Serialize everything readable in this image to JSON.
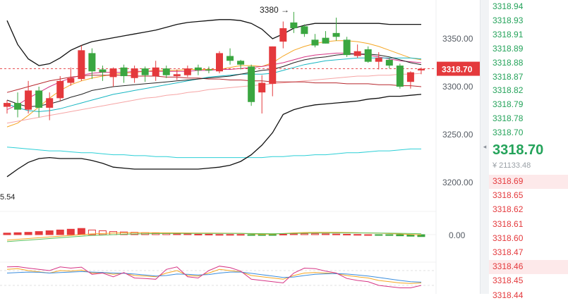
{
  "chart": {
    "price_labels": [
      "3350.00",
      "3300.00",
      "3250.00",
      "3200.00"
    ],
    "last_price_tag": "3318.70",
    "high_annotation": "3380 →",
    "low_annotation": "5.54",
    "macd_zero_label": "0.00",
    "colors": {
      "up": "#e4393c",
      "down": "#3aa640",
      "tag": "#e4393c"
    }
  },
  "toggle": {
    "icon": "chevron-left-icon",
    "glyph": "◂"
  },
  "order_book": {
    "asks": [
      "3318.94",
      "3318.93",
      "3318.91",
      "3318.89",
      "3318.88",
      "3318.87",
      "3318.82",
      "3318.79",
      "3318.78",
      "3318.70"
    ],
    "last_price": "3318.70",
    "turnover": "¥ 21133.48",
    "bids": [
      "3318.69",
      "3318.65",
      "3318.62",
      "3318.61",
      "3318.60",
      "3318.47",
      "3318.46",
      "3318.45",
      "3318.44"
    ]
  },
  "chart_data": {
    "type": "candlestick",
    "price_axis": {
      "ticks": [
        3350,
        3300,
        3250,
        3200
      ],
      "ylim": [
        3180,
        3395
      ]
    },
    "last_price": 3318.7,
    "high_marker": 3380,
    "candles": [
      {
        "o": 3279,
        "h": 3286,
        "l": 3272,
        "c": 3283
      },
      {
        "o": 3283,
        "h": 3294,
        "l": 3268,
        "c": 3276
      },
      {
        "o": 3276,
        "h": 3306,
        "l": 3272,
        "c": 3296
      },
      {
        "o": 3296,
        "h": 3300,
        "l": 3268,
        "c": 3278
      },
      {
        "o": 3278,
        "h": 3294,
        "l": 3265,
        "c": 3288
      },
      {
        "o": 3288,
        "h": 3311,
        "l": 3285,
        "c": 3306
      },
      {
        "o": 3304,
        "h": 3320,
        "l": 3301,
        "c": 3309
      },
      {
        "o": 3308,
        "h": 3343,
        "l": 3306,
        "c": 3338
      },
      {
        "o": 3335,
        "h": 3340,
        "l": 3308,
        "c": 3316
      },
      {
        "o": 3318,
        "h": 3322,
        "l": 3306,
        "c": 3315
      },
      {
        "o": 3310,
        "h": 3320,
        "l": 3300,
        "c": 3319
      },
      {
        "o": 3320,
        "h": 3323,
        "l": 3304,
        "c": 3311
      },
      {
        "o": 3309,
        "h": 3322,
        "l": 3304,
        "c": 3319
      },
      {
        "o": 3319,
        "h": 3321,
        "l": 3305,
        "c": 3312
      },
      {
        "o": 3311,
        "h": 3327,
        "l": 3306,
        "c": 3320
      },
      {
        "o": 3319,
        "h": 3322,
        "l": 3309,
        "c": 3312
      },
      {
        "o": 3311,
        "h": 3318,
        "l": 3307,
        "c": 3313
      },
      {
        "o": 3312,
        "h": 3322,
        "l": 3310,
        "c": 3319
      },
      {
        "o": 3320,
        "h": 3323,
        "l": 3312,
        "c": 3317
      },
      {
        "o": 3318,
        "h": 3321,
        "l": 3314,
        "c": 3317
      },
      {
        "o": 3316,
        "h": 3337,
        "l": 3314,
        "c": 3335
      },
      {
        "o": 3332,
        "h": 3340,
        "l": 3323,
        "c": 3327
      },
      {
        "o": 3327,
        "h": 3328,
        "l": 3318,
        "c": 3323
      },
      {
        "o": 3321,
        "h": 3323,
        "l": 3280,
        "c": 3284
      },
      {
        "o": 3294,
        "h": 3312,
        "l": 3272,
        "c": 3304
      },
      {
        "o": 3303,
        "h": 3342,
        "l": 3290,
        "c": 3342
      },
      {
        "o": 3347,
        "h": 3368,
        "l": 3340,
        "c": 3361
      },
      {
        "o": 3367,
        "h": 3378,
        "l": 3356,
        "c": 3361
      },
      {
        "o": 3363,
        "h": 3365,
        "l": 3352,
        "c": 3355
      },
      {
        "o": 3349,
        "h": 3355,
        "l": 3341,
        "c": 3343
      },
      {
        "o": 3351,
        "h": 3358,
        "l": 3345,
        "c": 3345
      },
      {
        "o": 3356,
        "h": 3372,
        "l": 3348,
        "c": 3352
      },
      {
        "o": 3349,
        "h": 3352,
        "l": 3331,
        "c": 3333
      },
      {
        "o": 3332,
        "h": 3344,
        "l": 3330,
        "c": 3337
      },
      {
        "o": 3339,
        "h": 3342,
        "l": 3325,
        "c": 3326
      },
      {
        "o": 3326,
        "h": 3336,
        "l": 3318,
        "c": 3330
      },
      {
        "o": 3328,
        "h": 3330,
        "l": 3319,
        "c": 3322
      },
      {
        "o": 3322,
        "h": 3324,
        "l": 3298,
        "c": 3300
      },
      {
        "o": 3305,
        "h": 3316,
        "l": 3298,
        "c": 3315
      },
      {
        "o": 3317,
        "h": 3320,
        "l": 3313,
        "c": 3318.7
      }
    ],
    "bollinger": {
      "upper": [
        3369,
        3344,
        3329,
        3322,
        3324,
        3330,
        3338,
        3343,
        3347,
        3349,
        3351,
        3353,
        3355,
        3357,
        3359,
        3362,
        3365,
        3367,
        3368,
        3369,
        3370,
        3370,
        3369,
        3366,
        3360,
        3350,
        3355,
        3361,
        3364,
        3366,
        3366,
        3366,
        3366,
        3366,
        3366,
        3366,
        3365,
        3365,
        3365,
        3365
      ],
      "middle": [
        3286,
        3282,
        3279,
        3280,
        3282,
        3285,
        3289,
        3292,
        3296,
        3298,
        3300,
        3301,
        3302,
        3303,
        3304,
        3305,
        3306,
        3307,
        3308,
        3309,
        3310,
        3311,
        3313,
        3315,
        3317,
        3318,
        3321,
        3325,
        3328,
        3330,
        3331,
        3333,
        3334,
        3334,
        3334,
        3333,
        3331,
        3328,
        3325,
        3323
      ],
      "lower": [
        3206,
        3214,
        3221,
        3225,
        3226,
        3225,
        3225,
        3225,
        3223,
        3220,
        3216,
        3215,
        3214,
        3214,
        3214,
        3214,
        3214,
        3214,
        3214,
        3215,
        3216,
        3218,
        3222,
        3229,
        3239,
        3252,
        3271,
        3276,
        3279,
        3281,
        3282,
        3283,
        3284,
        3285,
        3287,
        3288,
        3290,
        3290,
        3291,
        3292
      ]
    },
    "moving_averages": [
      {
        "color": "#f5a623",
        "values": [
          3258,
          3262,
          3270,
          3279,
          3288,
          3296,
          3302,
          3306,
          3309,
          3311,
          3313,
          3314,
          3315,
          3316,
          3317,
          3317,
          3317,
          3318,
          3318,
          3318,
          3318,
          3320,
          3322,
          3322,
          3321,
          3325,
          3332,
          3338,
          3342,
          3345,
          3347,
          3348,
          3348,
          3347,
          3345,
          3342,
          3338,
          3334,
          3330,
          3328
        ]
      },
      {
        "color": "#d63384",
        "values": [
          3276,
          3281,
          3288,
          3294,
          3300,
          3305,
          3309,
          3312,
          3314,
          3315,
          3315,
          3315,
          3316,
          3316,
          3316,
          3316,
          3316,
          3316,
          3317,
          3317,
          3318,
          3318,
          3319,
          3320,
          3321,
          3323,
          3325,
          3328,
          3331,
          3333,
          3334,
          3335,
          3335,
          3334,
          3333,
          3331,
          3329,
          3327,
          3326,
          3325
        ]
      },
      {
        "color": "#17b6c2",
        "values": [
          3282,
          3278,
          3275,
          3274,
          3275,
          3277,
          3280,
          3283,
          3286,
          3289,
          3292,
          3294,
          3296,
          3298,
          3300,
          3302,
          3304,
          3306,
          3308,
          3310,
          3311,
          3312,
          3313,
          3313,
          3313,
          3314,
          3317,
          3320,
          3323,
          3325,
          3327,
          3328,
          3329,
          3330,
          3330,
          3330,
          3330,
          3330,
          3330,
          3329
        ]
      },
      {
        "color": "#f6a5a5",
        "values": [
          3262,
          3264,
          3266,
          3268,
          3270,
          3272,
          3274,
          3276,
          3278,
          3280,
          3282,
          3284,
          3286,
          3288,
          3289,
          3291,
          3292,
          3294,
          3295,
          3297,
          3298,
          3299,
          3300,
          3301,
          3302,
          3303,
          3304,
          3305,
          3306,
          3307,
          3308,
          3309,
          3310,
          3311,
          3311,
          3312,
          3312,
          3313,
          3313,
          3314
        ]
      },
      {
        "color": "#b7282e",
        "values": [
          3294,
          3297,
          3300,
          3303,
          3306,
          3308,
          3310,
          3311,
          3312,
          3312,
          3312,
          3312,
          3311,
          3311,
          3311,
          3310,
          3310,
          3309,
          3309,
          3308,
          3308,
          3307,
          3307,
          3306,
          3306,
          3305,
          3305,
          3305,
          3305,
          3304,
          3304,
          3304,
          3303,
          3303,
          3303,
          3302,
          3302,
          3301,
          3301,
          3300
        ]
      },
      {
        "color": "#2ccfd6",
        "values": [
          3237,
          3236,
          3235,
          3234,
          3233,
          3233,
          3232,
          3231,
          3231,
          3230,
          3229,
          3229,
          3228,
          3228,
          3227,
          3227,
          3226,
          3226,
          3226,
          3226,
          3226,
          3226,
          3226,
          3226,
          3226,
          3227,
          3227,
          3228,
          3228,
          3229,
          3229,
          3230,
          3231,
          3231,
          3232,
          3233,
          3233,
          3234,
          3235,
          3235
        ]
      }
    ],
    "macd": {
      "zero": 0,
      "histogram": [
        4,
        5,
        6,
        8,
        10,
        12,
        14,
        16,
        12,
        10,
        8,
        7,
        6,
        5,
        4,
        3,
        2,
        2,
        1,
        1,
        0.5,
        0.5,
        0.5,
        -2,
        -2,
        -1.5,
        1,
        2,
        2.5,
        2.5,
        2,
        1.5,
        1,
        0.5,
        0,
        -1,
        -2,
        -3,
        -4,
        -5
      ],
      "dif": [
        -14,
        -12,
        -10,
        -8,
        -6,
        -4,
        -2,
        0,
        2,
        3,
        4,
        4.5,
        5,
        5,
        5,
        4.8,
        4.6,
        4.4,
        4.2,
        4,
        3.8,
        3.6,
        3.4,
        2,
        1,
        1.5,
        3,
        4.5,
        5.5,
        6,
        6,
        5.8,
        5.4,
        5,
        4.4,
        3.8,
        2.8,
        1.8,
        0.6,
        -0.4
      ],
      "dea": [
        -18,
        -16,
        -14,
        -12,
        -10,
        -8,
        -6,
        -4,
        -2,
        -1,
        0,
        1,
        1.8,
        2.4,
        2.8,
        3,
        3.1,
        3.2,
        3.2,
        3.2,
        3.2,
        3.2,
        3.2,
        3,
        2.8,
        2.6,
        2.8,
        3.2,
        3.6,
        4,
        4.2,
        4.4,
        4.4,
        4.4,
        4.3,
        4.1,
        3.8,
        3.4,
        2.9,
        2.4
      ],
      "ylim": [
        -20,
        20
      ]
    },
    "kdj": {
      "k": [
        85,
        88,
        80,
        75,
        70,
        80,
        78,
        82,
        70,
        72,
        65,
        70,
        60,
        58,
        55,
        70,
        80,
        60,
        58,
        70,
        85,
        80,
        75,
        60,
        55,
        50,
        45,
        60,
        70,
        72,
        70,
        68,
        60,
        55,
        50,
        40,
        35,
        30,
        28,
        30
      ],
      "d": [
        70,
        72,
        74,
        73,
        70,
        72,
        74,
        76,
        74,
        72,
        70,
        69,
        66,
        62,
        58,
        60,
        66,
        65,
        62,
        64,
        70,
        74,
        74,
        69,
        63,
        58,
        52,
        54,
        60,
        65,
        67,
        68,
        66,
        62,
        58,
        52,
        46,
        40,
        35,
        33
      ],
      "j": [
        95,
        96,
        90,
        85,
        80,
        95,
        90,
        94,
        65,
        70,
        55,
        72,
        50,
        48,
        45,
        85,
        95,
        55,
        50,
        80,
        98,
        92,
        78,
        45,
        40,
        35,
        30,
        70,
        90,
        88,
        78,
        70,
        48,
        40,
        35,
        20,
        15,
        10,
        10,
        20
      ],
      "ylim": [
        0,
        100
      ]
    }
  }
}
